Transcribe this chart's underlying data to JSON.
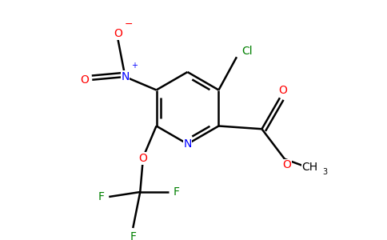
{
  "bg_color": "#ffffff",
  "bond_color": "#000000",
  "atom_colors": {
    "N": "#0000ff",
    "O": "#ff0000",
    "F": "#008000",
    "Cl": "#008000"
  },
  "bond_width": 1.8,
  "figsize": [
    4.84,
    3.0
  ],
  "dpi": 100
}
